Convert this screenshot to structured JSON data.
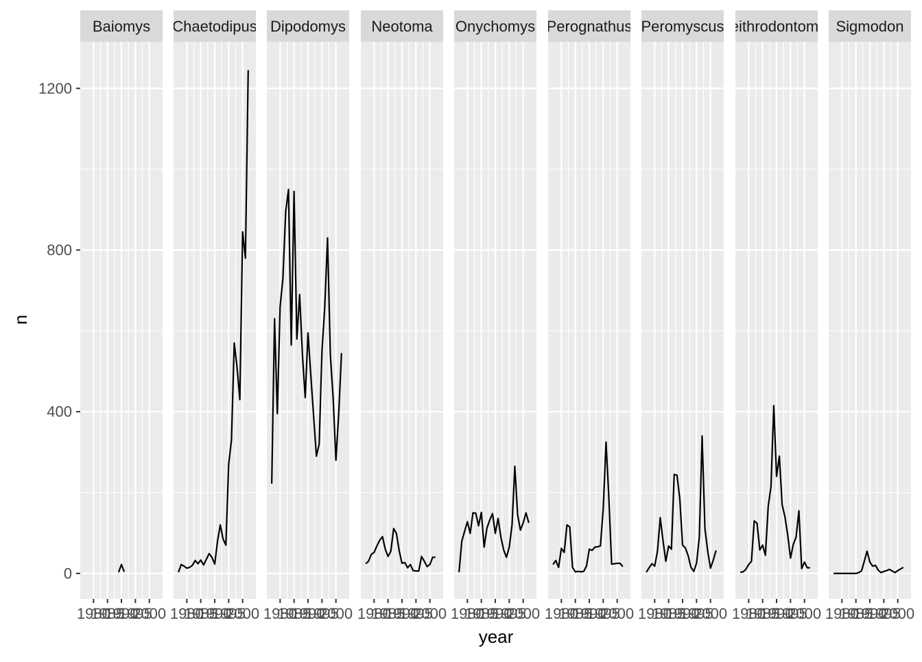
{
  "chart_data": {
    "type": "line",
    "facet_by": "genus",
    "xlabel": "year",
    "ylabel": "n",
    "xlim": [
      1975.25,
      2004.75
    ],
    "ylim": [
      -63,
      1315
    ],
    "x_ticks": [
      1980,
      1985,
      1990,
      1995,
      2000
    ],
    "x_tick_labels": [
      "1980",
      "1985",
      "1990",
      "1995",
      "2000"
    ],
    "y_ticks": [
      0,
      400,
      800,
      1200
    ],
    "y_tick_labels": [
      "0",
      "400",
      "800",
      "1200"
    ],
    "grid": true,
    "colors": {
      "panel_bg": "#ebebeb",
      "strip_bg": "#d9d9d9",
      "grid_line": "#ffffff",
      "series_line": "#000000",
      "axis_text": "#4d4d4d",
      "title_text": "#000000"
    },
    "series": [
      {
        "name": "Baiomys",
        "x": [
          1989,
          1990,
          1991
        ],
        "values": [
          3,
          22,
          4
        ]
      },
      {
        "name": "Chaetodipus",
        "x": [
          1977,
          1978,
          1979,
          1980,
          1981,
          1982,
          1983,
          1984,
          1985,
          1986,
          1987,
          1988,
          1989,
          1990,
          1991,
          1992,
          1993,
          1994,
          1995,
          1996,
          1997,
          1998,
          1999,
          2000,
          2001,
          2002
        ],
        "values": [
          3,
          22,
          18,
          13,
          15,
          20,
          32,
          24,
          33,
          21,
          35,
          49,
          40,
          23,
          80,
          120,
          85,
          70,
          270,
          330,
          570,
          510,
          430,
          845,
          780,
          1245
        ]
      },
      {
        "name": "Dipodomys",
        "x": [
          1977,
          1978,
          1979,
          1980,
          1981,
          1982,
          1983,
          1984,
          1985,
          1986,
          1987,
          1988,
          1989,
          1990,
          1991,
          1992,
          1993,
          1994,
          1995,
          1996,
          1997,
          1998,
          1999,
          2000,
          2001,
          2002
        ],
        "values": [
          222,
          630,
          395,
          660,
          730,
          895,
          950,
          565,
          945,
          580,
          690,
          540,
          435,
          595,
          490,
          390,
          290,
          320,
          550,
          660,
          830,
          540,
          435,
          280,
          395,
          545
        ]
      },
      {
        "name": "Neotoma",
        "x": [
          1977,
          1978,
          1979,
          1980,
          1981,
          1982,
          1983,
          1984,
          1985,
          1986,
          1987,
          1988,
          1989,
          1990,
          1991,
          1992,
          1993,
          1994,
          1995,
          1996,
          1997,
          1998,
          1999,
          2000,
          2001,
          2002
        ],
        "values": [
          24,
          30,
          47,
          52,
          68,
          82,
          91,
          60,
          42,
          55,
          111,
          99,
          56,
          25,
          27,
          14,
          22,
          7,
          6,
          6,
          42,
          30,
          17,
          22,
          40,
          40
        ]
      },
      {
        "name": "Onychomys",
        "x": [
          1977,
          1978,
          1979,
          1980,
          1981,
          1982,
          1983,
          1984,
          1985,
          1986,
          1987,
          1988,
          1989,
          1990,
          1991,
          1992,
          1993,
          1994,
          1995,
          1996,
          1997,
          1998,
          1999,
          2000,
          2001,
          2002
        ],
        "values": [
          3,
          80,
          104,
          128,
          99,
          150,
          149,
          118,
          151,
          65,
          112,
          132,
          148,
          99,
          136,
          90,
          58,
          40,
          65,
          120,
          265,
          145,
          107,
          125,
          150,
          125
        ]
      },
      {
        "name": "Perognathus",
        "x": [
          1977,
          1978,
          1979,
          1980,
          1981,
          1982,
          1983,
          1984,
          1985,
          1986,
          1987,
          1988,
          1989,
          1990,
          1991,
          1992,
          1993,
          1994,
          1995,
          1996,
          1997,
          1998,
          1999,
          2000,
          2001,
          2002
        ],
        "values": [
          22,
          32,
          15,
          62,
          52,
          120,
          115,
          15,
          4,
          5,
          4,
          5,
          18,
          60,
          57,
          65,
          66,
          68,
          160,
          325,
          190,
          23,
          24,
          25,
          25,
          17
        ]
      },
      {
        "name": "Peromyscus",
        "x": [
          1977,
          1978,
          1979,
          1980,
          1981,
          1982,
          1983,
          1984,
          1985,
          1986,
          1987,
          1988,
          1989,
          1990,
          1991,
          1992,
          1993,
          1994,
          1995,
          1996,
          1997,
          1998,
          1999,
          2000,
          2001,
          2002
        ],
        "values": [
          3,
          14,
          24,
          18,
          55,
          138,
          80,
          30,
          68,
          60,
          245,
          243,
          185,
          70,
          63,
          44,
          15,
          5,
          25,
          90,
          340,
          112,
          55,
          13,
          33,
          57
        ]
      },
      {
        "name": "Reithrodontomys",
        "x": [
          1977,
          1978,
          1979,
          1980,
          1981,
          1982,
          1983,
          1984,
          1985,
          1986,
          1987,
          1988,
          1989,
          1990,
          1991,
          1992,
          1993,
          1994,
          1995,
          1996,
          1997,
          1998,
          1999,
          2000,
          2001,
          2002
        ],
        "values": [
          3,
          4,
          10,
          22,
          30,
          130,
          124,
          58,
          70,
          45,
          165,
          215,
          415,
          240,
          290,
          170,
          140,
          95,
          38,
          72,
          90,
          155,
          12,
          28,
          14,
          14
        ]
      },
      {
        "name": "Sigmodon",
        "x": [
          1977,
          1978,
          1979,
          1980,
          1981,
          1982,
          1983,
          1984,
          1985,
          1986,
          1987,
          1988,
          1989,
          1990,
          1991,
          1992,
          1993,
          1994,
          1995,
          1996,
          1997,
          1998,
          1999,
          2000,
          2001,
          2002
        ],
        "values": [
          0,
          0,
          0,
          0,
          0,
          0,
          0,
          0,
          0,
          2,
          6,
          30,
          55,
          28,
          18,
          20,
          8,
          2,
          5,
          7,
          10,
          6,
          2,
          7,
          11,
          15
        ]
      }
    ]
  }
}
